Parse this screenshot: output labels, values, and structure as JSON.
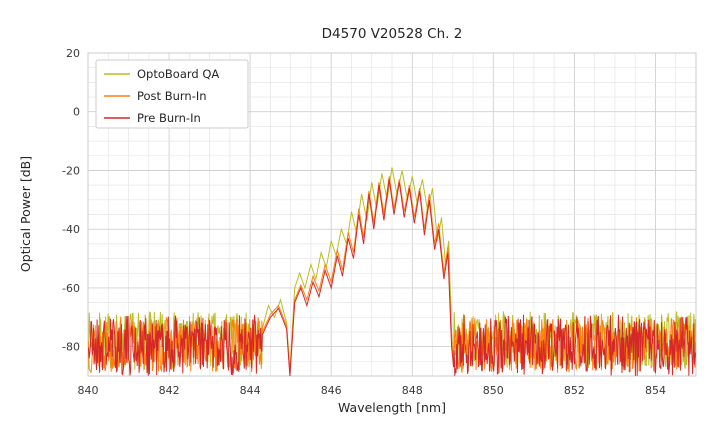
{
  "chart_data": {
    "type": "line",
    "title": "D4570 V20528 Ch. 2",
    "xlabel": "Wavelength [nm]",
    "ylabel": "Optical Power [dB]",
    "xlim": [
      840,
      855
    ],
    "ylim": [
      -90,
      20
    ],
    "xticks": [
      840,
      842,
      844,
      846,
      848,
      850,
      852,
      854
    ],
    "yticks": [
      20,
      0,
      -20,
      -40,
      -60,
      -80
    ],
    "xminor": 0.5,
    "yminor": 5,
    "grid": true,
    "legend_position": "upper left",
    "series": [
      {
        "name": "OptoBoard QA",
        "color": "#bcbd22",
        "noise": {
          "low": -88,
          "high": -68,
          "dx": 0.015,
          "seed": 7
        },
        "envelope": [
          [
            844.3,
            -74
          ],
          [
            844.45,
            -66
          ],
          [
            844.6,
            -70
          ],
          [
            844.75,
            -64
          ],
          [
            844.9,
            -72
          ],
          [
            844.98,
            -88
          ],
          [
            845.1,
            -60
          ],
          [
            845.22,
            -55
          ],
          [
            845.35,
            -60
          ],
          [
            845.5,
            -52
          ],
          [
            845.62,
            -57
          ],
          [
            845.75,
            -48
          ],
          [
            845.88,
            -53
          ],
          [
            846.0,
            -44
          ],
          [
            846.12,
            -49
          ],
          [
            846.25,
            -40
          ],
          [
            846.38,
            -45
          ],
          [
            846.5,
            -34
          ],
          [
            846.62,
            -41
          ],
          [
            846.75,
            -28
          ],
          [
            846.88,
            -37
          ],
          [
            847.0,
            -24
          ],
          [
            847.12,
            -33
          ],
          [
            847.25,
            -21
          ],
          [
            847.38,
            -30
          ],
          [
            847.5,
            -19
          ],
          [
            847.62,
            -28
          ],
          [
            847.75,
            -20
          ],
          [
            847.88,
            -30
          ],
          [
            848.0,
            -22
          ],
          [
            848.12,
            -31
          ],
          [
            848.25,
            -23
          ],
          [
            848.38,
            -34
          ],
          [
            848.5,
            -26
          ],
          [
            848.62,
            -44
          ],
          [
            848.72,
            -36
          ],
          [
            848.82,
            -52
          ],
          [
            848.9,
            -44
          ],
          [
            848.97,
            -75
          ],
          [
            849.02,
            -86
          ]
        ]
      },
      {
        "name": "Post Burn-In",
        "color": "#ff7f0e",
        "noise": {
          "low": -89,
          "high": -70,
          "dx": 0.015,
          "seed": 13
        },
        "envelope": [
          [
            844.3,
            -75
          ],
          [
            844.5,
            -69
          ],
          [
            844.7,
            -66
          ],
          [
            844.9,
            -73
          ],
          [
            844.98,
            -89
          ],
          [
            845.1,
            -64
          ],
          [
            845.25,
            -59
          ],
          [
            845.4,
            -64
          ],
          [
            845.55,
            -56
          ],
          [
            845.7,
            -61
          ],
          [
            845.85,
            -52
          ],
          [
            846.0,
            -58
          ],
          [
            846.15,
            -47
          ],
          [
            846.28,
            -54
          ],
          [
            846.42,
            -41
          ],
          [
            846.55,
            -48
          ],
          [
            846.68,
            -33
          ],
          [
            846.8,
            -43
          ],
          [
            846.93,
            -27
          ],
          [
            847.05,
            -38
          ],
          [
            847.18,
            -24
          ],
          [
            847.3,
            -35
          ],
          [
            847.43,
            -22
          ],
          [
            847.55,
            -33
          ],
          [
            847.68,
            -23
          ],
          [
            847.8,
            -34
          ],
          [
            847.93,
            -25
          ],
          [
            848.05,
            -36
          ],
          [
            848.18,
            -26
          ],
          [
            848.3,
            -40
          ],
          [
            848.42,
            -28
          ],
          [
            848.55,
            -45
          ],
          [
            848.65,
            -38
          ],
          [
            848.78,
            -55
          ],
          [
            848.88,
            -46
          ],
          [
            848.97,
            -78
          ],
          [
            849.02,
            -86
          ]
        ]
      },
      {
        "name": "Pre Burn-In",
        "color": "#d62728",
        "noise": {
          "low": -90,
          "high": -69,
          "dx": 0.015,
          "seed": 21
        },
        "envelope": [
          [
            844.3,
            -76
          ],
          [
            844.5,
            -70
          ],
          [
            844.7,
            -67
          ],
          [
            844.9,
            -74
          ],
          [
            844.98,
            -90
          ],
          [
            845.1,
            -65
          ],
          [
            845.25,
            -60
          ],
          [
            845.4,
            -66
          ],
          [
            845.55,
            -58
          ],
          [
            845.7,
            -63
          ],
          [
            845.85,
            -54
          ],
          [
            846.0,
            -60
          ],
          [
            846.15,
            -49
          ],
          [
            846.28,
            -56
          ],
          [
            846.42,
            -43
          ],
          [
            846.55,
            -50
          ],
          [
            846.68,
            -35
          ],
          [
            846.8,
            -45
          ],
          [
            846.93,
            -28
          ],
          [
            847.05,
            -40
          ],
          [
            847.18,
            -25
          ],
          [
            847.3,
            -37
          ],
          [
            847.43,
            -23
          ],
          [
            847.55,
            -35
          ],
          [
            847.68,
            -24
          ],
          [
            847.8,
            -36
          ],
          [
            847.93,
            -26
          ],
          [
            848.05,
            -38
          ],
          [
            848.18,
            -27
          ],
          [
            848.3,
            -42
          ],
          [
            848.42,
            -30
          ],
          [
            848.55,
            -47
          ],
          [
            848.65,
            -40
          ],
          [
            848.78,
            -57
          ],
          [
            848.88,
            -48
          ],
          [
            848.97,
            -80
          ],
          [
            849.02,
            -87
          ]
        ]
      }
    ]
  }
}
